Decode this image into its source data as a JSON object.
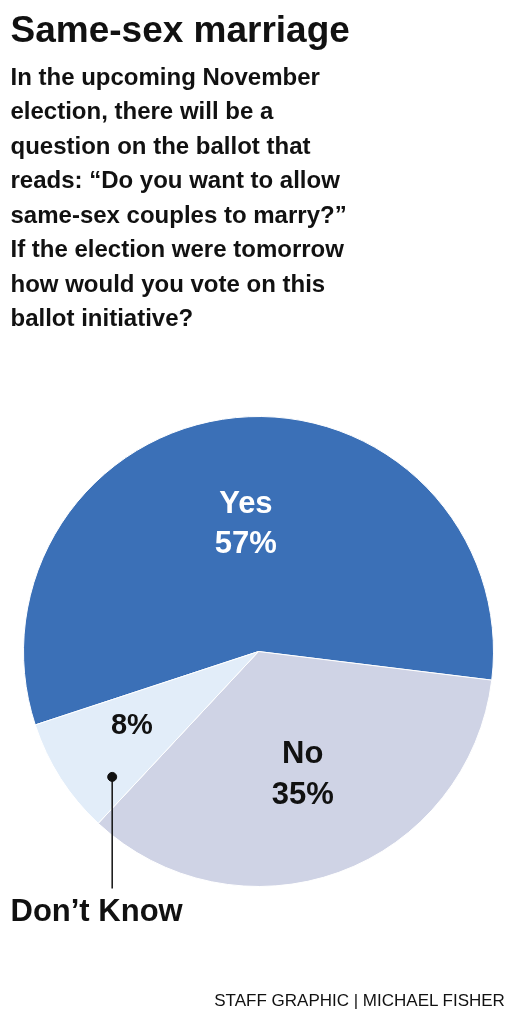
{
  "chart_data": {
    "type": "pie",
    "title": "Same-sex marriage",
    "subtitle": "In the upcoming November\nelection, there will be a\nquestion on the ballot that\nreads: “Do you want to allow\nsame-sex couples to marry?”\nIf the election were tomorrow\nhow would you vote on this\nballot initiative?",
    "categories": [
      "Yes",
      "No",
      "Don’t Know"
    ],
    "values": [
      57,
      35,
      8
    ],
    "value_labels": [
      "57%",
      "35%",
      "8%"
    ],
    "colors": [
      "#3b70b7",
      "#cfd3e5",
      "#e2edf9"
    ],
    "annotations": [
      "STAFF GRAPHIC | MICHAEL FISHER"
    ]
  }
}
